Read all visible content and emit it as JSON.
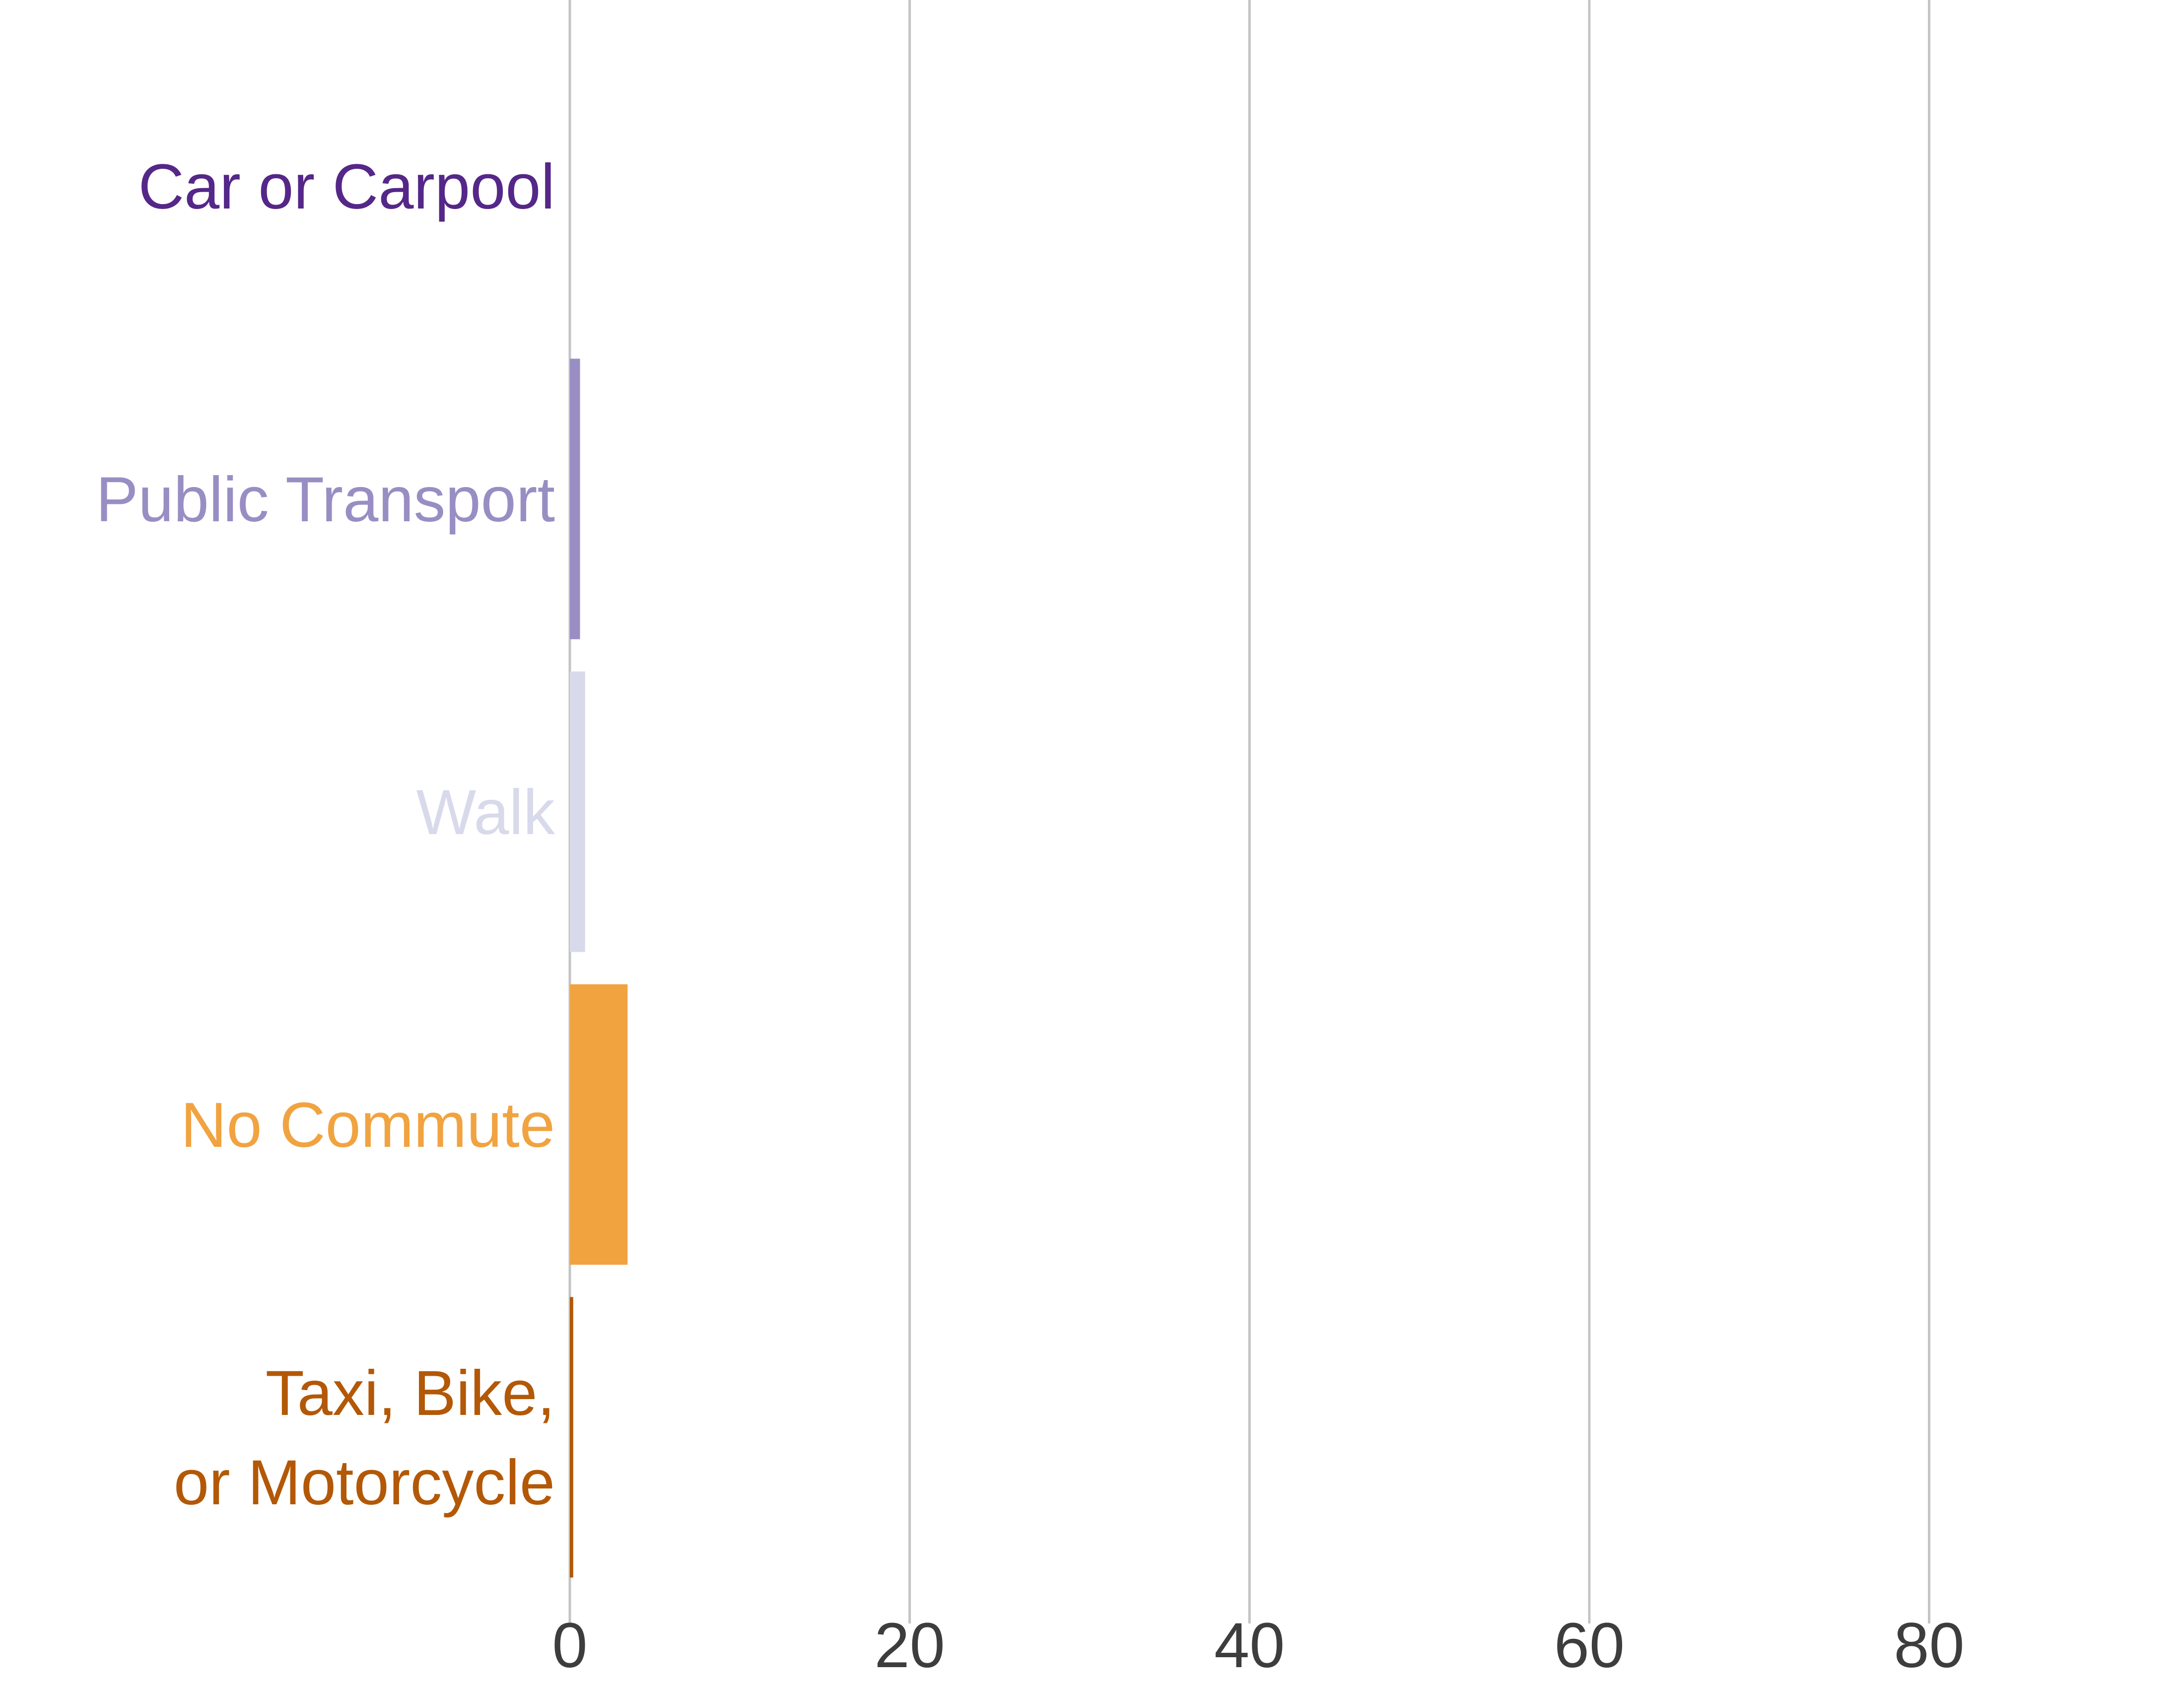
{
  "chart_data": {
    "type": "bar",
    "orientation": "horizontal",
    "categories": [
      {
        "lines": [
          "Car or Carpool"
        ],
        "color": "#542788"
      },
      {
        "lines": [
          "Public Transport"
        ],
        "color": "#998ec3"
      },
      {
        "lines": [
          "Walk"
        ],
        "color": "#d8daeb"
      },
      {
        "lines": [
          "No Commute"
        ],
        "color": "#f1a340"
      },
      {
        "lines": [
          "Taxi, Bike,",
          "or Motorcycle"
        ],
        "color": "#b35806"
      }
    ],
    "values": [
      0.0,
      0.6,
      0.9,
      3.4,
      0.2
    ],
    "xlim": [
      0,
      95
    ],
    "xticks": [
      0,
      20,
      40,
      60,
      80
    ],
    "xtick_labels": [
      "0",
      "20",
      "40",
      "60",
      "80"
    ],
    "grid": "vertical",
    "title": "",
    "xlabel": "",
    "ylabel": "",
    "legend": "none"
  }
}
